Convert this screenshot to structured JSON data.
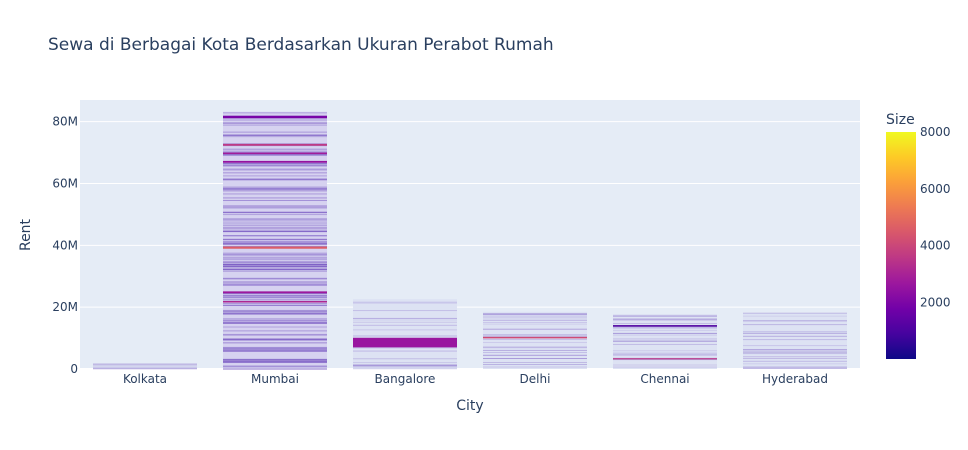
{
  "chart_data": {
    "type": "bar",
    "title": "Sewa di Berbagai Kota Berdasarkan Ukuran Perabot Rumah",
    "xlabel": "City",
    "ylabel": "Rent",
    "categories": [
      "Kolkata",
      "Mumbai",
      "Bangalore",
      "Delhi",
      "Chennai",
      "Hyderabad"
    ],
    "ylim": [
      0,
      87000000
    ],
    "yticks": [
      0,
      20000000,
      40000000,
      60000000,
      80000000
    ],
    "ytick_labels": [
      "0",
      "20M",
      "40M",
      "60M",
      "80M"
    ],
    "totals": [
      1900000,
      83200000,
      22600000,
      18500000,
      17800000,
      18300000
    ],
    "highlights": [
      {
        "category": "Mumbai",
        "from": 81100000,
        "to": 81900000,
        "size": 1900
      },
      {
        "category": "Mumbai",
        "from": 72200000,
        "to": 72800000,
        "size": 3600
      },
      {
        "category": "Mumbai",
        "from": 69500000,
        "to": 70000000,
        "size": 2800
      },
      {
        "category": "Mumbai",
        "from": 66700000,
        "to": 67300000,
        "size": 2500
      },
      {
        "category": "Mumbai",
        "from": 38900000,
        "to": 39600000,
        "size": 4600
      },
      {
        "category": "Mumbai",
        "from": 24500000,
        "to": 25100000,
        "size": 2700
      },
      {
        "category": "Mumbai",
        "from": 21500000,
        "to": 22000000,
        "size": 3100
      },
      {
        "category": "Bangalore",
        "from": 7000000,
        "to": 10100000,
        "size": 2600
      },
      {
        "category": "Delhi",
        "from": 9900000,
        "to": 10400000,
        "size": 4100
      },
      {
        "category": "Chennai",
        "from": 13700000,
        "to": 14200000,
        "size": 1100
      },
      {
        "category": "Chennai",
        "from": 3200000,
        "to": 3500000,
        "size": 3500
      }
    ],
    "colorbar": {
      "title": "Size",
      "min": 0,
      "max": 8000,
      "ticks": [
        2000,
        4000,
        6000,
        8000
      ],
      "tick_labels": [
        "2000",
        "4000",
        "6000",
        "8000"
      ],
      "colorscale": [
        "#0d0887",
        "#46039f",
        "#7201a8",
        "#9c179e",
        "#bd3786",
        "#d8576b",
        "#ed7953",
        "#fb9f3a",
        "#fdca26",
        "#f0f921"
      ]
    },
    "grid": true,
    "plot_bgcolor": "#e5ecf6"
  }
}
